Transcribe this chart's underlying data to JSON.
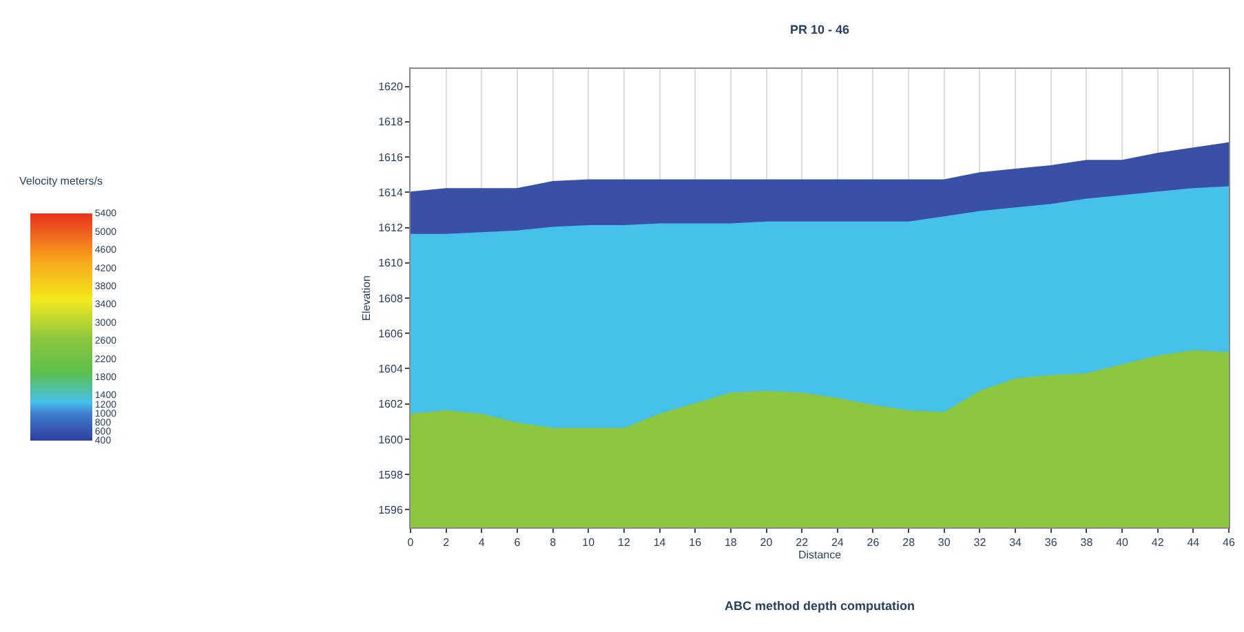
{
  "chart_data": {
    "type": "area",
    "title": "PR 10 - 46",
    "xlabel": "Distance",
    "ylabel": "Elevation",
    "annotations": [
      "ABC method depth computation"
    ],
    "x": [
      0,
      2,
      4,
      6,
      8,
      10,
      12,
      14,
      16,
      18,
      20,
      22,
      24,
      26,
      28,
      30,
      32,
      34,
      36,
      38,
      40,
      42,
      44,
      46
    ],
    "series": [
      {
        "color": "#8cc63f",
        "values": [
          1601.4,
          1601.6,
          1601.4,
          1600.9,
          1600.6,
          1600.6,
          1600.6,
          1601.4,
          1602.0,
          1602.6,
          1602.7,
          1602.6,
          1602.3,
          1601.9,
          1601.6,
          1601.5,
          1602.7,
          1603.4,
          1603.6,
          1603.7,
          1604.2,
          1604.7,
          1605.0,
          1604.9
        ]
      },
      {
        "color": "#45c1ea",
        "values": [
          1611.6,
          1611.6,
          1611.7,
          1611.8,
          1612.0,
          1612.1,
          1612.1,
          1612.2,
          1612.2,
          1612.2,
          1612.3,
          1612.3,
          1612.3,
          1612.3,
          1612.3,
          1612.6,
          1612.9,
          1613.1,
          1613.3,
          1613.6,
          1613.8,
          1614.0,
          1614.2,
          1614.3
        ]
      },
      {
        "color": "#3a50a6",
        "values": [
          1614.0,
          1614.2,
          1614.2,
          1614.2,
          1614.6,
          1614.7,
          1614.7,
          1614.7,
          1614.7,
          1614.7,
          1614.7,
          1614.7,
          1614.7,
          1614.7,
          1614.7,
          1614.7,
          1615.1,
          1615.3,
          1615.5,
          1615.8,
          1615.8,
          1616.2,
          1616.5,
          1616.8
        ]
      }
    ],
    "xlim": [
      0,
      46
    ],
    "xticks": [
      0,
      2,
      4,
      6,
      8,
      10,
      12,
      14,
      16,
      18,
      20,
      22,
      24,
      26,
      28,
      30,
      32,
      34,
      36,
      38,
      40,
      42,
      44,
      46
    ],
    "ylim": [
      1595,
      1621
    ],
    "yticks": [
      1596,
      1598,
      1600,
      1602,
      1604,
      1606,
      1608,
      1610,
      1612,
      1614,
      1616,
      1618,
      1620
    ],
    "grid": "x",
    "clabel": "Velocity meters/s",
    "clim": [
      400,
      5400
    ],
    "cticks": [
      400,
      600,
      800,
      1000,
      1200,
      1400,
      1800,
      2200,
      2600,
      3000,
      3400,
      3800,
      4200,
      4600,
      5000,
      5400
    ]
  }
}
